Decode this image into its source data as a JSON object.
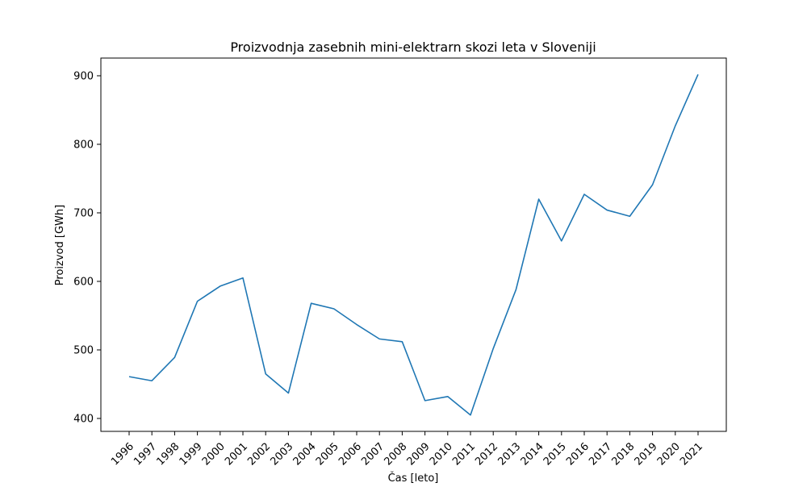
{
  "chart_data": {
    "type": "line",
    "title": "Proizvodnja zasebnih mini-elektrarn skozi leta v Sloveniji",
    "xlabel": "Čas [leto]",
    "ylabel": "Proizvod [GWh]",
    "x": [
      "1996",
      "1997",
      "1998",
      "1999",
      "2000",
      "2001",
      "2002",
      "2003",
      "2004",
      "2005",
      "2006",
      "2007",
      "2008",
      "2009",
      "2010",
      "2011",
      "2012",
      "2013",
      "2014",
      "2015",
      "2016",
      "2017",
      "2018",
      "2019",
      "2020",
      "2021"
    ],
    "series": [
      {
        "values": [
          461,
          455,
          489,
          571,
          593,
          605,
          465,
          437,
          568,
          560,
          537,
          516,
          512,
          426,
          432,
          405,
          502,
          588,
          720,
          659,
          727,
          704,
          695,
          741,
          827,
          902
        ]
      }
    ],
    "yticks": [
      400,
      500,
      600,
      700,
      800,
      900
    ],
    "ylim": [
      381.15,
      925.85
    ],
    "grid": false,
    "line_color": "#1f77b4"
  }
}
